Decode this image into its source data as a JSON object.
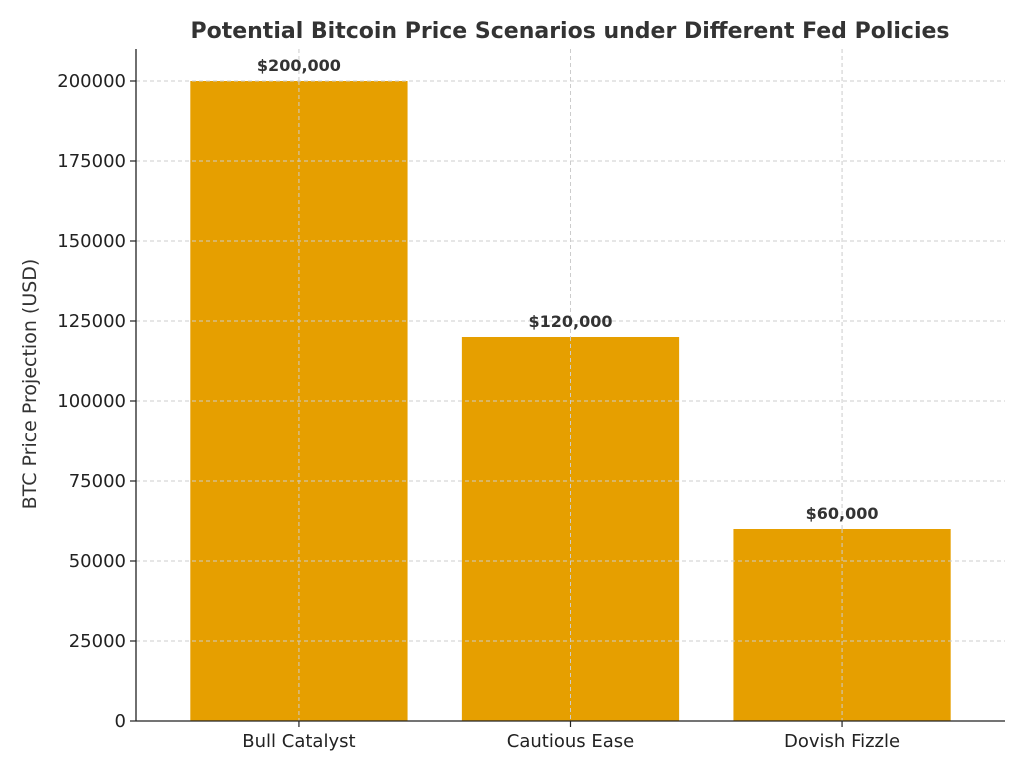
{
  "chart_data": {
    "type": "bar",
    "title": "Potential Bitcoin Price Scenarios under Different Fed Policies",
    "xlabel": "",
    "ylabel": "BTC Price Projection (USD)",
    "categories": [
      "Bull Catalyst",
      "Cautious Ease",
      "Dovish Fizzle"
    ],
    "values": [
      200000,
      120000,
      60000
    ],
    "data_labels": [
      "$200,000",
      "$120,000",
      "$60,000"
    ],
    "ylim": [
      0,
      210000
    ],
    "yticks": [
      0,
      25000,
      50000,
      75000,
      100000,
      125000,
      150000,
      175000,
      200000
    ],
    "ytick_labels": [
      "0",
      "25000",
      "50000",
      "75000",
      "100000",
      "125000",
      "150000",
      "175000",
      "200000"
    ],
    "grid": true,
    "legend": "none",
    "bar_color": "#E69F00"
  }
}
